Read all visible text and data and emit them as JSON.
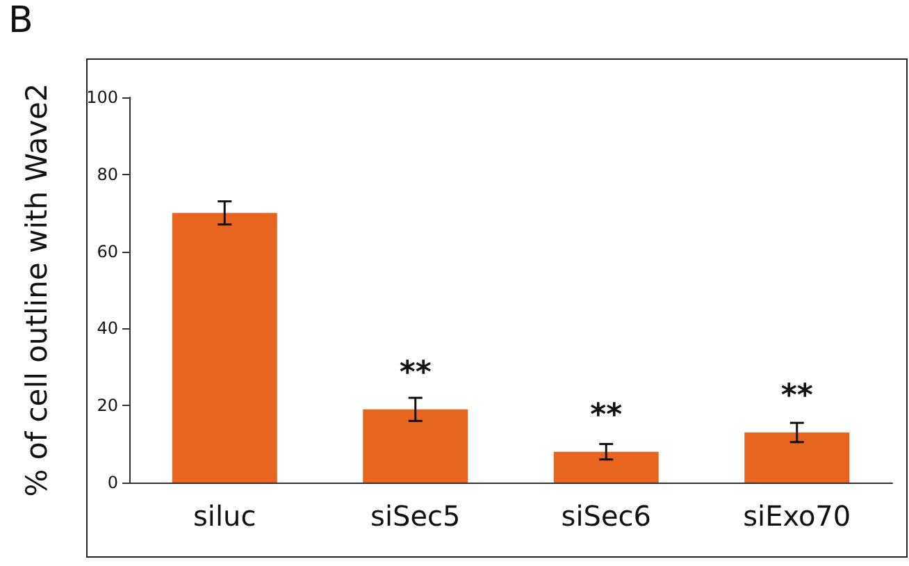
{
  "chart_data": {
    "type": "bar",
    "ylabel": "% of cell outline with Wave2",
    "categories": [
      "siluc",
      "siSec5",
      "siSec6",
      "siExo70"
    ],
    "values": [
      70,
      19,
      8,
      13
    ],
    "errors": [
      3,
      3,
      2,
      2.5
    ],
    "color": "#e8651f",
    "ylim": [
      0,
      100
    ],
    "yticks": [
      0,
      20,
      40,
      60,
      80,
      100
    ],
    "grid": false,
    "annotations": [
      "B",
      {
        "text": "**",
        "x": "siSec5",
        "y": 19
      },
      {
        "text": "**",
        "x": "siSec6",
        "y": 8
      },
      {
        "text": "**",
        "x": "siExo70",
        "y": 13
      }
    ]
  }
}
